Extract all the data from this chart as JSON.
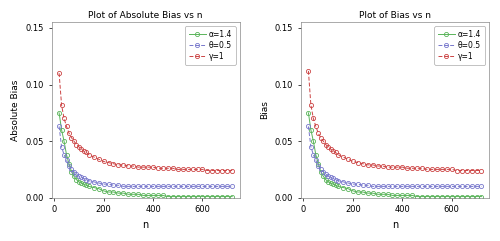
{
  "title_left": "Plot of Absolute Bias vs n",
  "title_right": "Plot of Bias vs n",
  "xlabel": "n",
  "ylabel_left": "Absolute Bias",
  "ylabel_right": "Bias",
  "ylim": [
    0,
    0.155
  ],
  "yticks": [
    0.0,
    0.05,
    0.1,
    0.15
  ],
  "xlim": [
    -10,
    750
  ],
  "xticks": [
    0,
    200,
    400,
    600
  ],
  "n_values": [
    20,
    30,
    40,
    50,
    60,
    70,
    80,
    90,
    100,
    110,
    120,
    130,
    140,
    160,
    180,
    200,
    220,
    240,
    260,
    280,
    300,
    320,
    340,
    360,
    380,
    400,
    420,
    440,
    460,
    480,
    500,
    520,
    540,
    560,
    580,
    600,
    620,
    640,
    660,
    680,
    700,
    720
  ],
  "green_abs": [
    0.075,
    0.06,
    0.05,
    0.038,
    0.03,
    0.023,
    0.019,
    0.016,
    0.014,
    0.013,
    0.012,
    0.011,
    0.01,
    0.009,
    0.008,
    0.006,
    0.005,
    0.005,
    0.004,
    0.004,
    0.003,
    0.003,
    0.003,
    0.002,
    0.002,
    0.002,
    0.002,
    0.002,
    0.001,
    0.001,
    0.001,
    0.001,
    0.001,
    0.001,
    0.001,
    0.001,
    0.001,
    0.001,
    0.001,
    0.001,
    0.001,
    0.001
  ],
  "blue_abs": [
    0.063,
    0.045,
    0.038,
    0.033,
    0.028,
    0.025,
    0.023,
    0.021,
    0.019,
    0.018,
    0.017,
    0.016,
    0.015,
    0.014,
    0.013,
    0.012,
    0.012,
    0.011,
    0.011,
    0.01,
    0.01,
    0.01,
    0.01,
    0.01,
    0.01,
    0.01,
    0.01,
    0.01,
    0.01,
    0.01,
    0.01,
    0.01,
    0.01,
    0.01,
    0.01,
    0.01,
    0.01,
    0.01,
    0.01,
    0.01,
    0.01,
    0.01
  ],
  "red_abs": [
    0.11,
    0.082,
    0.07,
    0.063,
    0.057,
    0.053,
    0.05,
    0.047,
    0.045,
    0.043,
    0.041,
    0.04,
    0.038,
    0.036,
    0.034,
    0.032,
    0.031,
    0.03,
    0.029,
    0.029,
    0.028,
    0.028,
    0.027,
    0.027,
    0.027,
    0.027,
    0.026,
    0.026,
    0.026,
    0.026,
    0.025,
    0.025,
    0.025,
    0.025,
    0.025,
    0.025,
    0.024,
    0.024,
    0.024,
    0.024,
    0.024,
    0.024
  ],
  "green_bias": [
    0.075,
    0.06,
    0.05,
    0.038,
    0.03,
    0.023,
    0.019,
    0.016,
    0.014,
    0.013,
    0.012,
    0.011,
    0.01,
    0.009,
    0.008,
    0.006,
    0.005,
    0.005,
    0.004,
    0.004,
    0.003,
    0.003,
    0.003,
    0.002,
    0.002,
    0.002,
    0.002,
    0.002,
    0.001,
    0.001,
    0.001,
    0.001,
    0.001,
    0.001,
    0.001,
    0.001,
    0.001,
    0.001,
    0.001,
    0.001,
    0.001,
    0.001
  ],
  "blue_bias": [
    0.063,
    0.045,
    0.038,
    0.033,
    0.028,
    0.025,
    0.023,
    0.021,
    0.019,
    0.018,
    0.017,
    0.016,
    0.015,
    0.014,
    0.013,
    0.012,
    0.012,
    0.011,
    0.011,
    0.01,
    0.01,
    0.01,
    0.01,
    0.01,
    0.01,
    0.01,
    0.01,
    0.01,
    0.01,
    0.01,
    0.01,
    0.01,
    0.01,
    0.01,
    0.01,
    0.01,
    0.01,
    0.01,
    0.01,
    0.01,
    0.01,
    0.01
  ],
  "red_bias": [
    0.112,
    0.082,
    0.07,
    0.063,
    0.057,
    0.053,
    0.05,
    0.047,
    0.045,
    0.043,
    0.041,
    0.04,
    0.038,
    0.036,
    0.034,
    0.032,
    0.031,
    0.03,
    0.029,
    0.029,
    0.028,
    0.028,
    0.027,
    0.027,
    0.027,
    0.027,
    0.026,
    0.026,
    0.026,
    0.026,
    0.025,
    0.025,
    0.025,
    0.025,
    0.025,
    0.025,
    0.024,
    0.024,
    0.024,
    0.024,
    0.024,
    0.024
  ],
  "green_color": "#5ab45a",
  "blue_color": "#7777cc",
  "red_color": "#cc4444",
  "legend_labels": [
    "α=1.4",
    "θ=0.5",
    "γ=1"
  ],
  "bg_color": "#ffffff",
  "plot_bg": "#ffffff"
}
